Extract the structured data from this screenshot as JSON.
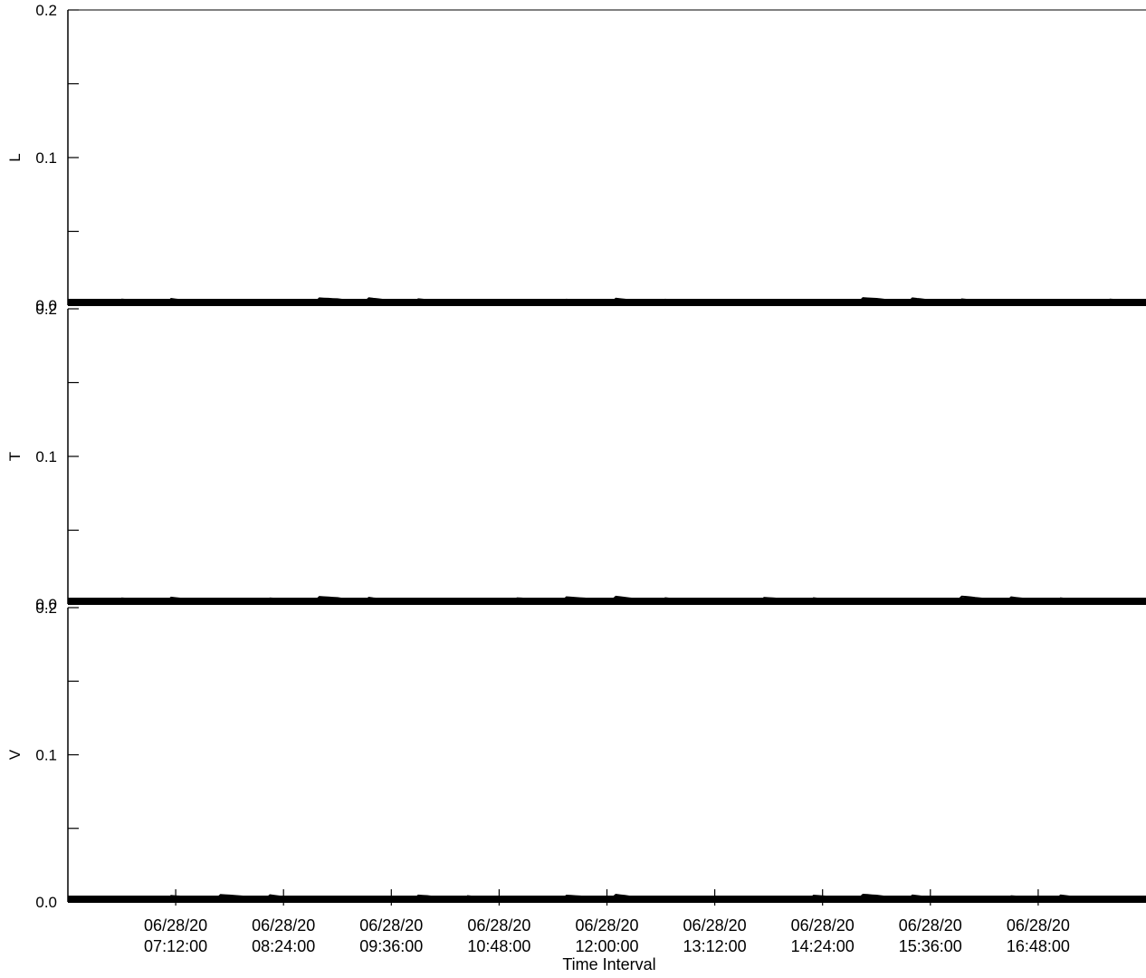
{
  "chart_data": {
    "type": "line",
    "xlabel": "Time Interval",
    "x_ticks": [
      {
        "date": "06/28/20",
        "time": "07:12:00"
      },
      {
        "date": "06/28/20",
        "time": "08:24:00"
      },
      {
        "date": "06/28/20",
        "time": "09:36:00"
      },
      {
        "date": "06/28/20",
        "time": "10:48:00"
      },
      {
        "date": "06/28/20",
        "time": "12:00:00"
      },
      {
        "date": "06/28/20",
        "time": "13:12:00"
      },
      {
        "date": "06/28/20",
        "time": "14:24:00"
      },
      {
        "date": "06/28/20",
        "time": "15:36:00"
      },
      {
        "date": "06/28/20",
        "time": "16:48:00"
      }
    ],
    "xlim": [
      "06/28/20 06:00:00",
      "06/28/20 18:00:00"
    ],
    "ylim": [
      0,
      0.2
    ],
    "y_ticks": [
      {
        "value": 0.0,
        "label": "0.0"
      },
      {
        "value": 0.1,
        "label": "0.1"
      },
      {
        "value": 0.2,
        "label": "0.2"
      }
    ],
    "grid": false,
    "color": "#000000",
    "panels": [
      {
        "ylabel": "L",
        "values": [
          0.0,
          0.003,
          0.0,
          0.004,
          0.002,
          0.0,
          0.003,
          0.001,
          0.0,
          0.004,
          0.002,
          0.0,
          0.003
        ]
      },
      {
        "ylabel": "T",
        "values": [
          0.0,
          0.003,
          0.001,
          0.004,
          0.0,
          0.002,
          0.004,
          0.001,
          0.003,
          0.0,
          0.004,
          0.002,
          0.0
        ]
      },
      {
        "ylabel": "V",
        "values": [
          0.0,
          0.002,
          0.004,
          0.0,
          0.003,
          0.001,
          0.004,
          0.0,
          0.002,
          0.004,
          0.001,
          0.003,
          0.0
        ]
      }
    ]
  }
}
